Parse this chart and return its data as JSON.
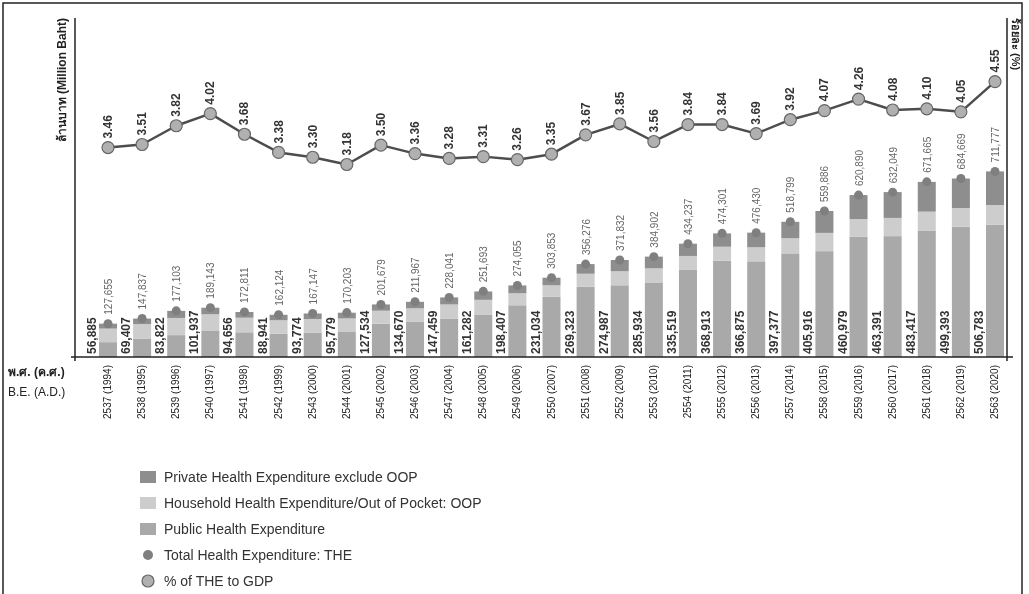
{
  "chart_data": {
    "type": "bar",
    "stacked": true,
    "xlabel": "พ.ศ. (ค.ศ.)",
    "annotations": [
      "B.E. (A.D.)"
    ],
    "ylabel": "ล้านบาท (Million Baht)",
    "y2label": "ร้อยละ (%)",
    "ylim": [
      0,
      1300000
    ],
    "y2lim": [
      0,
      5.6
    ],
    "grid": false,
    "legend": "bottom",
    "categories": [
      "2537 (1994)",
      "2538 (1995)",
      "2539 (1996)",
      "2540 (1997)",
      "2541 (1998)",
      "2542 (1999)",
      "2543 (2000)",
      "2544 (2001)",
      "2545 (2002)",
      "2546 (2003)",
      "2547 (2004)",
      "2548 (2005)",
      "2549 (2006)",
      "2550 (2007)",
      "2551 (2008)",
      "2552 (2009)",
      "2553 (2010)",
      "2554 (2011)",
      "2555 (2012)",
      "2556 (2013)",
      "2557 (2014)",
      "2558 (2015)",
      "2559 (2016)",
      "2560 (2017)",
      "2561 (2018)",
      "2562 (2019)",
      "2563 (2020)"
    ],
    "series": [
      {
        "name": "Public Health Expenditure",
        "color": "#a9a9a9",
        "values": [
          56885,
          69407,
          83822,
          101937,
          94656,
          88941,
          93774,
          95779,
          127534,
          134670,
          147459,
          161282,
          198407,
          231034,
          269323,
          274987,
          285934,
          335519,
          368913,
          366875,
          397377,
          405916,
          460979,
          463391,
          483417,
          499393,
          506783
        ],
        "value_labels": [
          "56,885",
          "69,407",
          "83,822",
          "101,937",
          "94,656",
          "88,941",
          "93,774",
          "95,779",
          "127,534",
          "134,670",
          "147,459",
          "161,282",
          "198,407",
          "231,034",
          "269,323",
          "274,987",
          "285,934",
          "335,519",
          "368,913",
          "366,875",
          "397,377",
          "405,916",
          "460,979",
          "463,391",
          "483,417",
          "499,393",
          "506,783"
        ]
      },
      {
        "name": "Household Health Expenditure/Out of Pocket: OOP",
        "color": "#cdcdcd",
        "values": [
          52000,
          57000,
          66000,
          62000,
          56000,
          52000,
          52000,
          52000,
          50000,
          52000,
          54000,
          58000,
          46000,
          44000,
          50000,
          54000,
          54000,
          52000,
          54000,
          54000,
          58000,
          70000,
          68000,
          70000,
          74000,
          72000,
          76000
        ]
      },
      {
        "name": "Private Health Expenditure exclude OOP",
        "color": "#8e8e8e",
        "values": [
          19000,
          21000,
          27000,
          25000,
          22000,
          21000,
          21000,
          22000,
          24000,
          25000,
          27000,
          32000,
          30000,
          29000,
          37000,
          43000,
          45000,
          47000,
          51000,
          56000,
          63000,
          84000,
          92000,
          99000,
          114000,
          113000,
          129000
        ]
      },
      {
        "name": "Total Health Expenditure: THE",
        "type": "scatter",
        "marker": "circle",
        "color": "#7f7f7f",
        "values": [
          127655,
          147837,
          177103,
          189143,
          172811,
          162124,
          167147,
          170203,
          201679,
          211967,
          228041,
          251693,
          274055,
          303853,
          356276,
          371832,
          384902,
          434237,
          474301,
          476430,
          518799,
          559886,
          620890,
          632049,
          671665,
          684669,
          711777
        ],
        "value_labels": [
          "127,655",
          "147,837",
          "177,103",
          "189,143",
          "172,811",
          "162,124",
          "167,147",
          "170,203",
          "201,679",
          "211,967",
          "228,041",
          "251,693",
          "274,055",
          "303,853",
          "356,276",
          "371,832",
          "384,902",
          "434,237",
          "474,301",
          "476,430",
          "518,799",
          "559,886",
          "620,890",
          "632,049",
          "671,665",
          "684,669",
          "711,777"
        ]
      },
      {
        "name": "% of THE to GDP",
        "type": "line",
        "axis": "y2",
        "marker": "circle",
        "line_style": "solid",
        "color": "#4d4d4d",
        "values": [
          3.46,
          3.51,
          3.82,
          4.02,
          3.68,
          3.38,
          3.3,
          3.18,
          3.5,
          3.36,
          3.28,
          3.31,
          3.26,
          3.35,
          3.67,
          3.85,
          3.56,
          3.84,
          3.84,
          3.69,
          3.92,
          4.07,
          4.26,
          4.08,
          4.1,
          4.05,
          4.55
        ],
        "value_labels": [
          "3.46",
          "3.51",
          "3.82",
          "4.02",
          "3.68",
          "3.38",
          "3.30",
          "3.18",
          "3.50",
          "3.36",
          "3.28",
          "3.31",
          "3.26",
          "3.35",
          "3.67",
          "3.85",
          "3.56",
          "3.84",
          "3.84",
          "3.69",
          "3.92",
          "4.07",
          "4.26",
          "4.08",
          "4.10",
          "4.05",
          "4.55"
        ]
      }
    ]
  }
}
